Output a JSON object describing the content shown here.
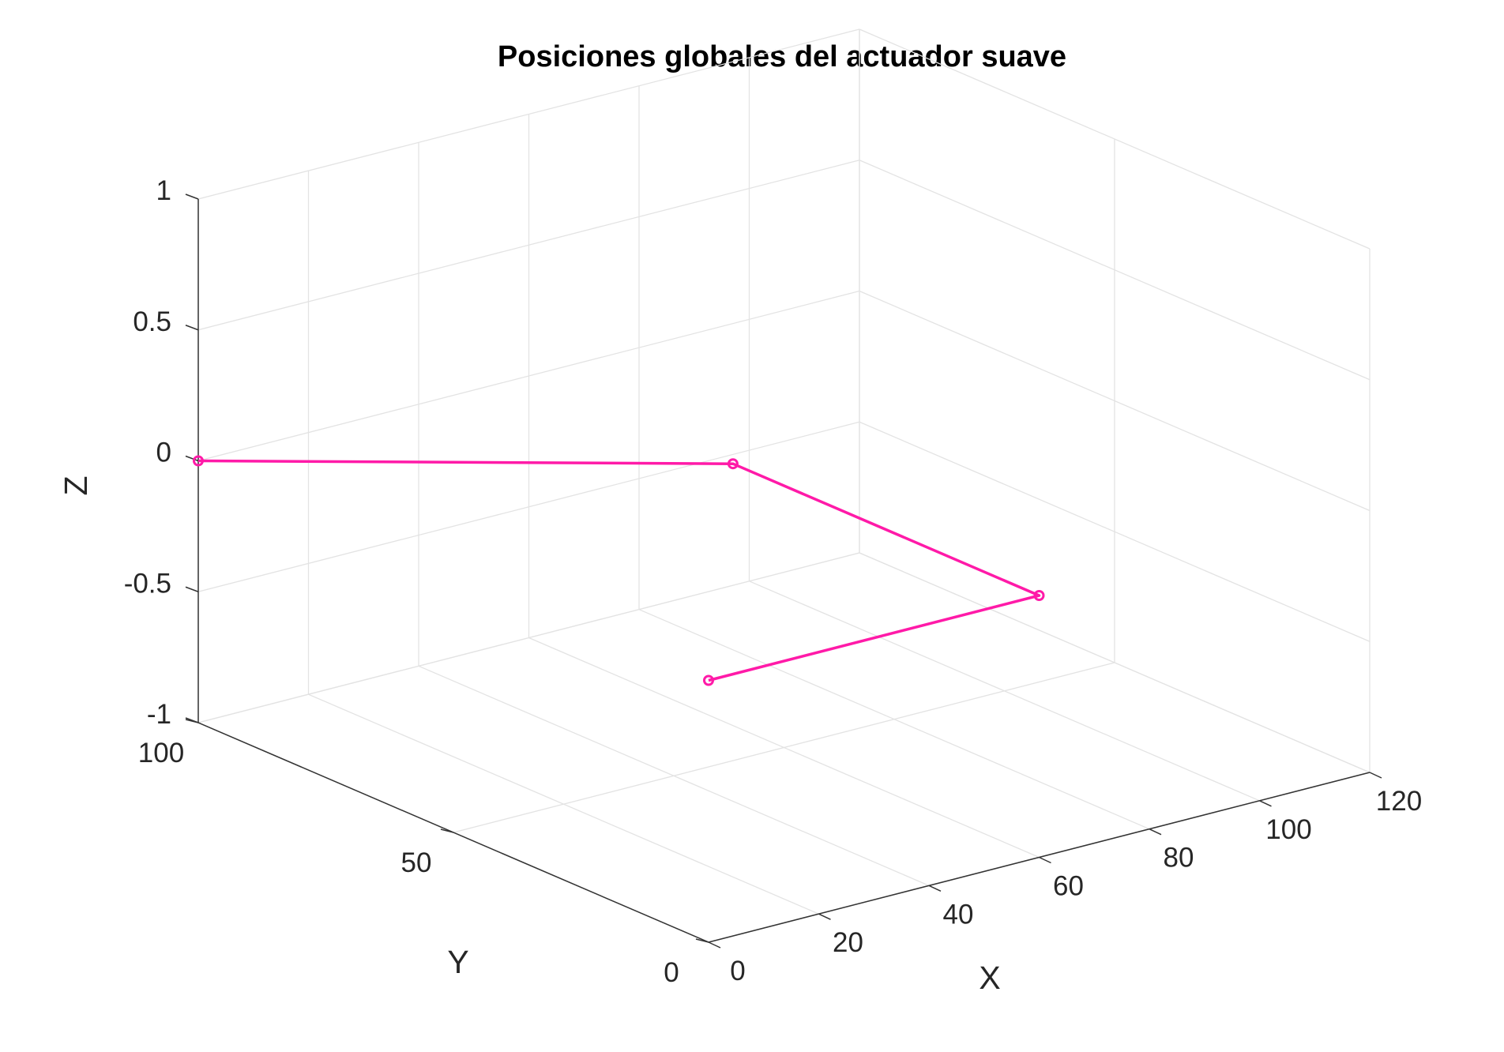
{
  "chart_data": {
    "type": "line3d",
    "title": "Posiciones globales del actuador suave",
    "xlabel": "X",
    "ylabel": "Y",
    "zlabel": "Z",
    "xlim": [
      0,
      120
    ],
    "ylim": [
      0,
      100
    ],
    "zlim": [
      -1,
      1
    ],
    "x_ticks": [
      0,
      20,
      40,
      60,
      80,
      100,
      120
    ],
    "y_ticks": [
      0,
      50,
      100
    ],
    "z_ticks": [
      -1,
      -0.5,
      0,
      0.5,
      1
    ],
    "x_tick_labels": [
      "0",
      "20",
      "40",
      "60",
      "80",
      "100",
      "120"
    ],
    "y_tick_labels": [
      "0",
      "50",
      "100"
    ],
    "z_tick_labels": [
      "-1",
      "-0.5",
      "0",
      "0.5",
      "1"
    ],
    "grid": true,
    "series": [
      {
        "color": "#ff1aa8",
        "marker": "circle",
        "points": [
          {
            "x": 0,
            "y": 0,
            "z": 0
          },
          {
            "x": 60,
            "y": 0,
            "z": 0
          },
          {
            "x": 60,
            "y": 60,
            "z": 0
          },
          {
            "x": 0,
            "y": 100,
            "z": 0
          }
        ]
      }
    ]
  }
}
